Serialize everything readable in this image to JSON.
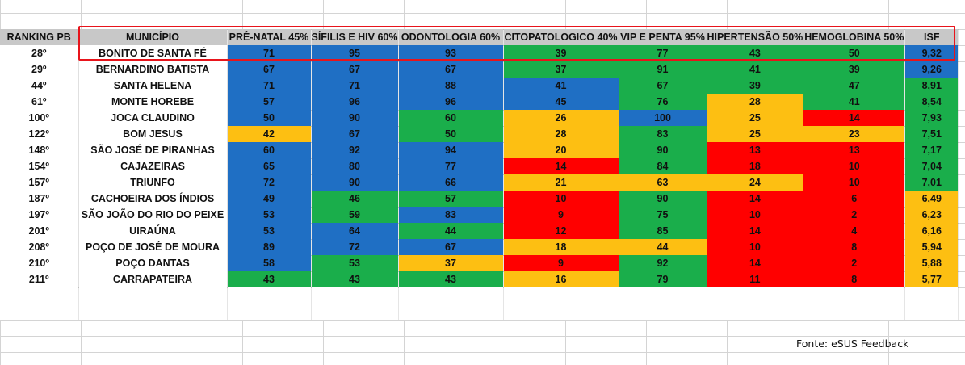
{
  "headers": [
    "RANKING PB",
    "MUNICÍPIO",
    "PRÉ-NATAL 45%",
    "SÍFILIS E HIV 60%",
    "ODONTOLOGIA 60%",
    "CITOPATOLOGICO 40%",
    "VIP E PENTA 95%",
    "HIPERTENSÃO 50%",
    "HEMOGLOBINA 50%",
    "ISF"
  ],
  "colors": {
    "blue": "#1f6fc4",
    "green": "#1aae4b",
    "yellow": "#fdbf12",
    "red": "#ff0000",
    "header": "#c8c8c8",
    "highlight": "#e8141b"
  },
  "rows": [
    {
      "rank": "28º",
      "municipio": "BONITO DE SANTA FÉ",
      "values": [
        "71",
        "95",
        "93",
        "39",
        "77",
        "43",
        "50",
        "9,32"
      ],
      "colors": [
        "blue",
        "blue",
        "blue",
        "green",
        "green",
        "green",
        "green",
        "blue"
      ]
    },
    {
      "rank": "29º",
      "municipio": "BERNARDINO BATISTA",
      "values": [
        "67",
        "67",
        "67",
        "37",
        "91",
        "41",
        "39",
        "9,26"
      ],
      "colors": [
        "blue",
        "blue",
        "blue",
        "green",
        "green",
        "green",
        "green",
        "blue"
      ]
    },
    {
      "rank": "44º",
      "municipio": "SANTA HELENA",
      "values": [
        "71",
        "71",
        "88",
        "41",
        "67",
        "39",
        "47",
        "8,91"
      ],
      "colors": [
        "blue",
        "blue",
        "blue",
        "blue",
        "green",
        "green",
        "green",
        "green"
      ]
    },
    {
      "rank": "61º",
      "municipio": "MONTE HOREBE",
      "values": [
        "57",
        "96",
        "96",
        "45",
        "76",
        "28",
        "41",
        "8,54"
      ],
      "colors": [
        "blue",
        "blue",
        "blue",
        "blue",
        "green",
        "yellow",
        "green",
        "green"
      ]
    },
    {
      "rank": "100º",
      "municipio": "JOCA CLAUDINO",
      "values": [
        "50",
        "90",
        "60",
        "26",
        "100",
        "25",
        "14",
        "7,93"
      ],
      "colors": [
        "blue",
        "blue",
        "green",
        "yellow",
        "blue",
        "yellow",
        "red",
        "green"
      ]
    },
    {
      "rank": "122º",
      "municipio": "BOM JESUS",
      "values": [
        "42",
        "67",
        "50",
        "28",
        "83",
        "25",
        "23",
        "7,51"
      ],
      "colors": [
        "yellow",
        "blue",
        "green",
        "yellow",
        "green",
        "yellow",
        "yellow",
        "green"
      ]
    },
    {
      "rank": "148º",
      "municipio": "SÃO JOSÉ DE PIRANHAS",
      "values": [
        "60",
        "92",
        "94",
        "20",
        "90",
        "13",
        "13",
        "7,17"
      ],
      "colors": [
        "blue",
        "blue",
        "blue",
        "yellow",
        "green",
        "red",
        "red",
        "green"
      ]
    },
    {
      "rank": "154º",
      "municipio": "CAJAZEIRAS",
      "values": [
        "65",
        "80",
        "77",
        "14",
        "84",
        "18",
        "10",
        "7,04"
      ],
      "colors": [
        "blue",
        "blue",
        "blue",
        "red",
        "green",
        "red",
        "red",
        "green"
      ]
    },
    {
      "rank": "157º",
      "municipio": "TRIUNFO",
      "values": [
        "72",
        "90",
        "66",
        "21",
        "63",
        "24",
        "10",
        "7,01"
      ],
      "colors": [
        "blue",
        "blue",
        "blue",
        "yellow",
        "yellow",
        "yellow",
        "red",
        "green"
      ]
    },
    {
      "rank": "187º",
      "municipio": "CACHOEIRA DOS ÍNDIOS",
      "values": [
        "49",
        "46",
        "57",
        "10",
        "90",
        "14",
        "6",
        "6,49"
      ],
      "colors": [
        "blue",
        "green",
        "green",
        "red",
        "green",
        "red",
        "red",
        "yellow"
      ]
    },
    {
      "rank": "197º",
      "municipio": "SÃO JOÃO DO RIO DO PEIXE",
      "values": [
        "53",
        "59",
        "83",
        "9",
        "75",
        "10",
        "2",
        "6,23"
      ],
      "colors": [
        "blue",
        "green",
        "blue",
        "red",
        "green",
        "red",
        "red",
        "yellow"
      ]
    },
    {
      "rank": "201º",
      "municipio": "UIRAÚNA",
      "values": [
        "53",
        "64",
        "44",
        "12",
        "85",
        "14",
        "4",
        "6,16"
      ],
      "colors": [
        "blue",
        "blue",
        "green",
        "red",
        "green",
        "red",
        "red",
        "yellow"
      ]
    },
    {
      "rank": "208º",
      "municipio": "POÇO DE JOSÉ DE MOURA",
      "values": [
        "89",
        "72",
        "67",
        "18",
        "44",
        "10",
        "8",
        "5,94"
      ],
      "colors": [
        "blue",
        "blue",
        "blue",
        "yellow",
        "yellow",
        "red",
        "red",
        "yellow"
      ]
    },
    {
      "rank": "210º",
      "municipio": "POÇO DANTAS",
      "values": [
        "58",
        "53",
        "37",
        "9",
        "92",
        "14",
        "2",
        "5,88"
      ],
      "colors": [
        "blue",
        "green",
        "yellow",
        "red",
        "green",
        "red",
        "red",
        "yellow"
      ]
    },
    {
      "rank": "211º",
      "municipio": "CARRAPATEIRA",
      "values": [
        "43",
        "43",
        "43",
        "16",
        "79",
        "11",
        "8",
        "5,77"
      ],
      "colors": [
        "green",
        "green",
        "green",
        "yellow",
        "green",
        "red",
        "red",
        "yellow"
      ]
    }
  ],
  "source": "Fonte: eSUS Feedback"
}
